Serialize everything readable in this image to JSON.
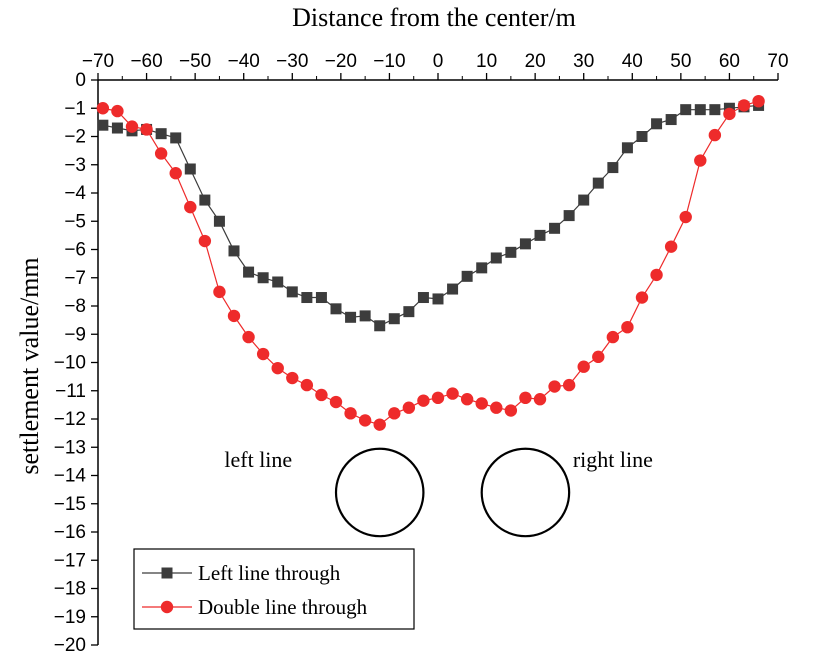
{
  "chart_data": {
    "type": "line",
    "title": "",
    "xlabel": "Distance from the center/m",
    "ylabel": "settlement value/mm",
    "x_axis_position": "top",
    "xlim": [
      -70,
      70
    ],
    "ylim": [
      -20,
      0
    ],
    "x_ticks": [
      -70,
      -60,
      -50,
      -40,
      -30,
      -20,
      -10,
      0,
      10,
      20,
      30,
      40,
      50,
      60,
      70
    ],
    "y_ticks": [
      0,
      -1,
      -2,
      -3,
      -4,
      -5,
      -6,
      -7,
      -8,
      -9,
      -10,
      -11,
      -12,
      -13,
      -14,
      -15,
      -16,
      -17,
      -18,
      -19,
      -20
    ],
    "grid": false,
    "legend": "bottom-left",
    "series": [
      {
        "name": "Left line through",
        "color": "#3c3c3c",
        "marker": "square",
        "x": [
          -69,
          -66,
          -63,
          -60,
          -57,
          -54,
          -51,
          -48,
          -45,
          -42,
          -39,
          -36,
          -33,
          -30,
          -27,
          -24,
          -21,
          -18,
          -15,
          -12,
          -9,
          -6,
          -3,
          0,
          3,
          6,
          9,
          12,
          15,
          18,
          21,
          24,
          27,
          30,
          33,
          36,
          39,
          42,
          45,
          48,
          51,
          54,
          57,
          60,
          63,
          66
        ],
        "values": [
          -1.6,
          -1.7,
          -1.8,
          -1.75,
          -1.9,
          -2.05,
          -3.15,
          -4.25,
          -5.0,
          -6.05,
          -6.8,
          -7.0,
          -7.15,
          -7.5,
          -7.7,
          -7.7,
          -8.1,
          -8.4,
          -8.35,
          -8.7,
          -8.45,
          -8.2,
          -7.7,
          -7.75,
          -7.4,
          -6.95,
          -6.65,
          -6.3,
          -6.1,
          -5.8,
          -5.5,
          -5.25,
          -4.8,
          -4.25,
          -3.65,
          -3.1,
          -2.4,
          -2.0,
          -1.55,
          -1.4,
          -1.05,
          -1.05,
          -1.05,
          -1.0,
          -0.95,
          -0.9
        ]
      },
      {
        "name": "Double line through",
        "color": "#ee2b2b",
        "marker": "circle",
        "x": [
          -69,
          -66,
          -63,
          -60,
          -57,
          -54,
          -51,
          -48,
          -45,
          -42,
          -39,
          -36,
          -33,
          -30,
          -27,
          -24,
          -21,
          -18,
          -15,
          -12,
          -9,
          -6,
          -3,
          0,
          3,
          6,
          9,
          12,
          15,
          18,
          21,
          24,
          27,
          30,
          33,
          36,
          39,
          42,
          45,
          48,
          51,
          54,
          57,
          60,
          63,
          66
        ],
        "values": [
          -1.0,
          -1.1,
          -1.65,
          -1.75,
          -2.6,
          -3.3,
          -4.5,
          -5.7,
          -7.5,
          -8.35,
          -9.1,
          -9.7,
          -10.2,
          -10.55,
          -10.8,
          -11.15,
          -11.4,
          -11.8,
          -12.05,
          -12.2,
          -11.8,
          -11.6,
          -11.35,
          -11.25,
          -11.1,
          -11.3,
          -11.45,
          -11.6,
          -11.7,
          -11.25,
          -11.3,
          -10.85,
          -10.8,
          -10.15,
          -9.8,
          -9.1,
          -8.75,
          -7.7,
          -6.9,
          -5.9,
          -4.85,
          -2.85,
          -1.95,
          -1.2,
          -0.9,
          -0.75
        ]
      }
    ],
    "annotations": [
      {
        "text": "left line",
        "data_x": -37,
        "data_y": -13.7
      },
      {
        "text": "right line",
        "data_x": 36,
        "data_y": -13.7
      }
    ],
    "tunnels": [
      {
        "name": "left-line-tunnel",
        "center_x": -12,
        "center_y": -14.6,
        "radius_x": 9
      },
      {
        "name": "right-line-tunnel",
        "center_x": 18,
        "center_y": -14.6,
        "radius_x": 9
      }
    ]
  }
}
